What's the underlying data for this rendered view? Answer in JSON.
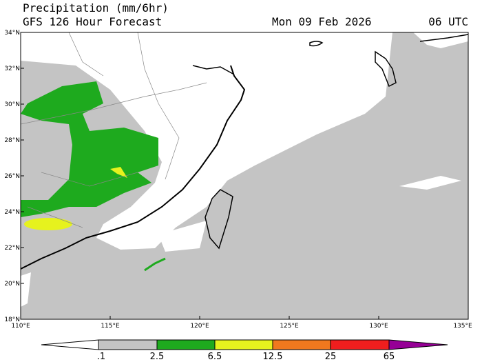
{
  "header": {
    "title": "Precipitation (mm/6hr)",
    "subtitle": "GFS 126 Hour Forecast",
    "date": "Mon 09 Feb 2026",
    "time": "06 UTC"
  },
  "map": {
    "lat_labels": [
      "34°N",
      "32°N",
      "30°N",
      "28°N",
      "26°N",
      "24°N",
      "22°N",
      "20°N",
      "18°N"
    ],
    "lon_labels": [
      "110°E",
      "115°E",
      "120°E",
      "125°E",
      "130°E",
      "135°E"
    ]
  },
  "colorbar": {
    "labels": [
      ".1",
      "2.5",
      "6.5",
      "12.5",
      "25",
      "65"
    ]
  }
}
